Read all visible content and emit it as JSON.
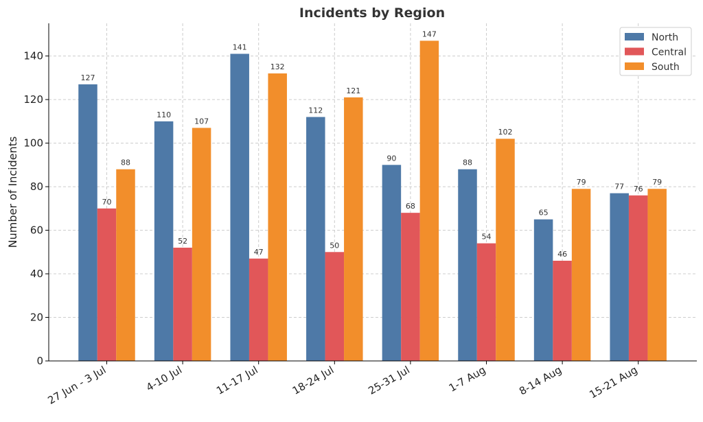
{
  "chart_data": {
    "type": "bar",
    "title": "Incidents by Region",
    "xlabel": "",
    "ylabel": "Number of Incidents",
    "ylim": [
      0,
      155
    ],
    "yticks": [
      0,
      20,
      40,
      60,
      80,
      100,
      120,
      140
    ],
    "categories": [
      "27 Jun - 3 Jul",
      "4-10 Jul",
      "11-17 Jul",
      "18-24 Jul",
      "25-31 Jul",
      "1-7 Aug",
      "8-14 Aug",
      "15-21 Aug"
    ],
    "series": [
      {
        "name": "North",
        "color": "#4e79a7",
        "values": [
          127,
          110,
          141,
          112,
          90,
          88,
          65,
          77
        ]
      },
      {
        "name": "Central",
        "color": "#e15759",
        "values": [
          70,
          52,
          47,
          50,
          68,
          54,
          46,
          76
        ]
      },
      {
        "name": "South",
        "color": "#f28e2b",
        "values": [
          88,
          107,
          132,
          121,
          147,
          102,
          79,
          79
        ]
      }
    ],
    "grid": true,
    "legend_position": "top-right"
  }
}
